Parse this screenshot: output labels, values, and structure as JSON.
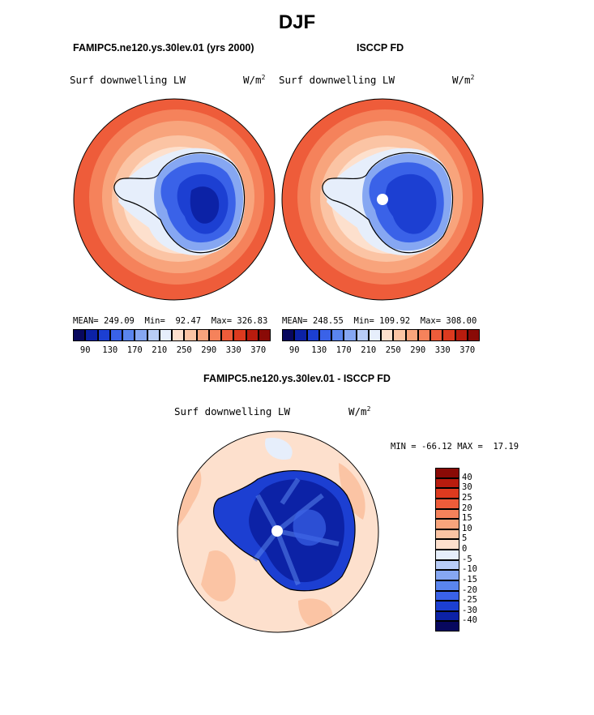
{
  "season_title": "DJF",
  "left_panel": {
    "case_name": "FAMIPC5.ne120.ys.30lev.01 (yrs 2000)",
    "variable": "Surf downwelling LW",
    "units": "W/m",
    "units_exp": "2",
    "mean_label": "MEAN=",
    "mean": "249.09",
    "min_label": "Min=",
    "min": "92.47",
    "max_label": "Max=",
    "max": "326.83"
  },
  "right_panel": {
    "case_name": "ISCCP FD",
    "variable": "Surf downwelling LW",
    "units": "W/m",
    "units_exp": "2",
    "mean_label": "MEAN=",
    "mean": "248.55",
    "min_label": "Min=",
    "min": "109.92",
    "max_label": "Max=",
    "max": "308.00"
  },
  "abs_colorbar": {
    "ticks": [
      "90",
      "130",
      "170",
      "210",
      "250",
      "290",
      "330",
      "370"
    ],
    "colors": [
      "#08085e",
      "#0c22a6",
      "#1c3fd2",
      "#3a62e8",
      "#5a85ee",
      "#86a7f2",
      "#b8ccf6",
      "#e6eefb",
      "#fde0cd",
      "#fbc4a4",
      "#f8a47c",
      "#f5825b",
      "#ee5c3a",
      "#dd3a1f",
      "#b81c0e",
      "#8a0a06"
    ]
  },
  "diff_panel": {
    "title": "FAMIPC5.ne120.ys.30lev.01 - ISCCP FD",
    "variable": "Surf downwelling LW",
    "units": "W/m",
    "units_exp": "2",
    "min_label": "MIN =",
    "min": "-66.12",
    "max_label": "MAX =",
    "max": "17.19"
  },
  "diff_colorbar": {
    "labels": [
      "40",
      "30",
      "25",
      "20",
      "15",
      "10",
      "5",
      "0",
      "-5",
      "-10",
      "-15",
      "-20",
      "-25",
      "-30",
      "-40"
    ],
    "colors": [
      "#8a0a06",
      "#b81c0e",
      "#dd3a1f",
      "#ee5c3a",
      "#f5825b",
      "#f8a47c",
      "#fbc4a4",
      "#fde0cd",
      "#e6eefb",
      "#b8ccf6",
      "#86a7f2",
      "#5a85ee",
      "#3a62e8",
      "#1c3fd2",
      "#0c22a6",
      "#08085e"
    ]
  }
}
